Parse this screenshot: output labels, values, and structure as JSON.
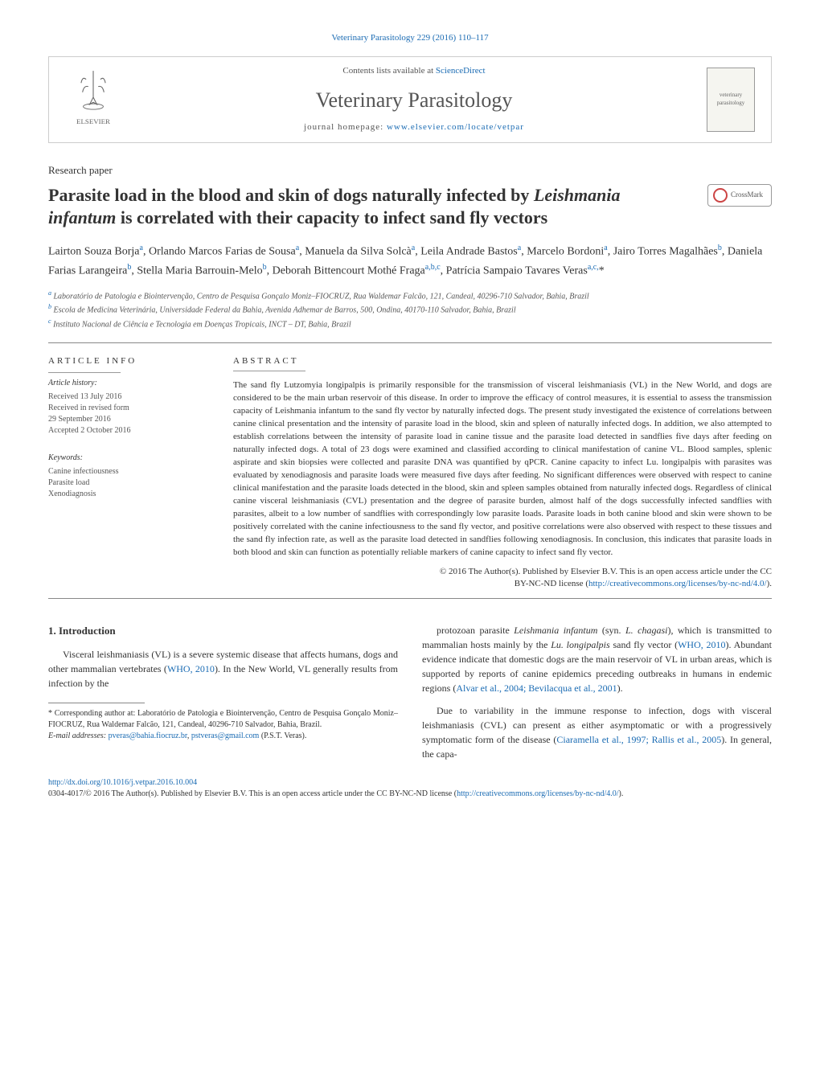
{
  "header": {
    "top_link": "Veterinary Parasitology 229 (2016) 110–117",
    "contents_prefix": "Contents lists available at ",
    "contents_link": "ScienceDirect",
    "journal_title": "Veterinary Parasitology",
    "homepage_prefix": "journal homepage: ",
    "homepage_link": "www.elsevier.com/locate/vetpar",
    "cover_text": "veterinary parasitology"
  },
  "paper": {
    "type": "Research paper",
    "title_html": "Parasite load in the blood and skin of dogs naturally infected by <em>Leishmania infantum</em> is correlated with their capacity to infect sand fly vectors",
    "crossmark": "CrossMark"
  },
  "authors_html": "Lairton Souza Borja<sup>a</sup>, Orlando Marcos Farias de Sousa<sup>a</sup>, Manuela da Silva Solcà<sup>a</sup>, Leila Andrade Bastos<sup>a</sup>, Marcelo Bordoni<sup>a</sup>, Jairo Torres Magalhães<sup>b</sup>, Daniela Farias Larangeira<sup>b</sup>, Stella Maria Barrouin-Melo<sup>b</sup>, Deborah Bittencourt Mothé Fraga<sup>a,b,c</sup>, Patrícia Sampaio Tavares Veras<sup>a,c,</sup>*",
  "affiliations": [
    {
      "sup": "a",
      "text": "Laboratório de Patologia e Biointervenção, Centro de Pesquisa Gonçalo Moniz–FIOCRUZ, Rua Waldemar Falcão, 121, Candeal, 40296-710 Salvador, Bahia, Brazil"
    },
    {
      "sup": "b",
      "text": "Escola de Medicina Veterinária, Universidade Federal da Bahia, Avenida Adhemar de Barros, 500, Ondina, 40170-110 Salvador, Bahia, Brazil"
    },
    {
      "sup": "c",
      "text": "Instituto Nacional de Ciência e Tecnologia em Doenças Tropicais, INCT – DT, Bahia, Brazil"
    }
  ],
  "article_info": {
    "heading": "ARTICLE INFO",
    "history_label": "Article history:",
    "history": [
      "Received 13 July 2016",
      "Received in revised form",
      "29 September 2016",
      "Accepted 2 October 2016"
    ],
    "keywords_label": "Keywords:",
    "keywords": [
      "Canine infectiousness",
      "Parasite load",
      "Xenodiagnosis"
    ]
  },
  "abstract": {
    "heading": "ABSTRACT",
    "text": "The sand fly Lutzomyia longipalpis is primarily responsible for the transmission of visceral leishmaniasis (VL) in the New World, and dogs are considered to be the main urban reservoir of this disease. In order to improve the efficacy of control measures, it is essential to assess the transmission capacity of Leishmania infantum to the sand fly vector by naturally infected dogs. The present study investigated the existence of correlations between canine clinical presentation and the intensity of parasite load in the blood, skin and spleen of naturally infected dogs. In addition, we also attempted to establish correlations between the intensity of parasite load in canine tissue and the parasite load detected in sandflies five days after feeding on naturally infected dogs. A total of 23 dogs were examined and classified according to clinical manifestation of canine VL. Blood samples, splenic aspirate and skin biopsies were collected and parasite DNA was quantified by qPCR. Canine capacity to infect Lu. longipalpis with parasites was evaluated by xenodiagnosis and parasite loads were measured five days after feeding. No significant differences were observed with respect to canine clinical manifestation and the parasite loads detected in the blood, skin and spleen samples obtained from naturally infected dogs. Regardless of clinical canine visceral leishmaniasis (CVL) presentation and the degree of parasite burden, almost half of the dogs successfully infected sandflies with parasites, albeit to a low number of sandflies with correspondingly low parasite loads. Parasite loads in both canine blood and skin were shown to be positively correlated with the canine infectiousness to the sand fly vector, and positive correlations were also observed with respect to these tissues and the sand fly infection rate, as well as the parasite load detected in sandflies following xenodiagnosis. In conclusion, this indicates that parasite loads in both blood and skin can function as potentially reliable markers of canine capacity to infect sand fly vector.",
    "copyright_line1": "© 2016 The Author(s). Published by Elsevier B.V. This is an open access article under the CC",
    "copyright_line2_prefix": "BY-NC-ND license (",
    "copyright_link": "http://creativecommons.org/licenses/by-nc-nd/4.0/",
    "copyright_line2_suffix": ")."
  },
  "intro": {
    "heading": "1.  Introduction",
    "p1_html": "Visceral leishmaniasis (VL) is a severe systemic disease that affects humans, dogs and other mammalian vertebrates (<a href='#'>WHO, 2010</a>). In the New World, VL generally results from infection by the",
    "p2_html": "protozoan parasite <em>Leishmania infantum</em> (syn. <em>L. chagasi</em>), which is transmitted to mammalian hosts mainly by the <em>Lu. longipalpis</em> sand fly vector (<a href='#'>WHO, 2010</a>). Abundant evidence indicate that domestic dogs are the main reservoir of VL in urban areas, which is supported by reports of canine epidemics preceding outbreaks in humans in endemic regions (<a href='#'>Alvar et al., 2004; Bevilacqua et al., 2001</a>).",
    "p3_html": "Due to variability in the immune response to infection, dogs with visceral leishmaniasis (CVL) can present as either asymptomatic or with a progressively symptomatic form of the disease (<a href='#'>Ciaramella et al., 1997; Rallis et al., 2005</a>). In general, the capa-"
  },
  "footnotes": {
    "corresponding": "* Corresponding author at: Laboratório de Patologia e Biointervenção, Centro de Pesquisa Gonçalo Moniz–FIOCRUZ, Rua Waldemar Falcão, 121, Candeal, 40296-710 Salvador, Bahia, Brazil.",
    "email_label": "E-mail addresses: ",
    "email1": "pveras@bahia.fiocruz.br",
    "email_sep": ", ",
    "email2": "pstveras@gmail.com",
    "email_suffix": " (P.S.T. Veras)."
  },
  "footer": {
    "doi": "http://dx.doi.org/10.1016/j.vetpar.2016.10.004",
    "issn_line_prefix": "0304-4017/© 2016 The Author(s). Published by Elsevier B.V. This is an open access article under the CC BY-NC-ND license (",
    "license_link": "http://creativecommons.org/licenses/by-nc-nd/4.0/",
    "issn_line_suffix": ")."
  },
  "colors": {
    "link": "#1a6bb3",
    "text": "#333333",
    "muted": "#555555",
    "rule": "#888888",
    "elsevier_orange": "#e9711c"
  }
}
